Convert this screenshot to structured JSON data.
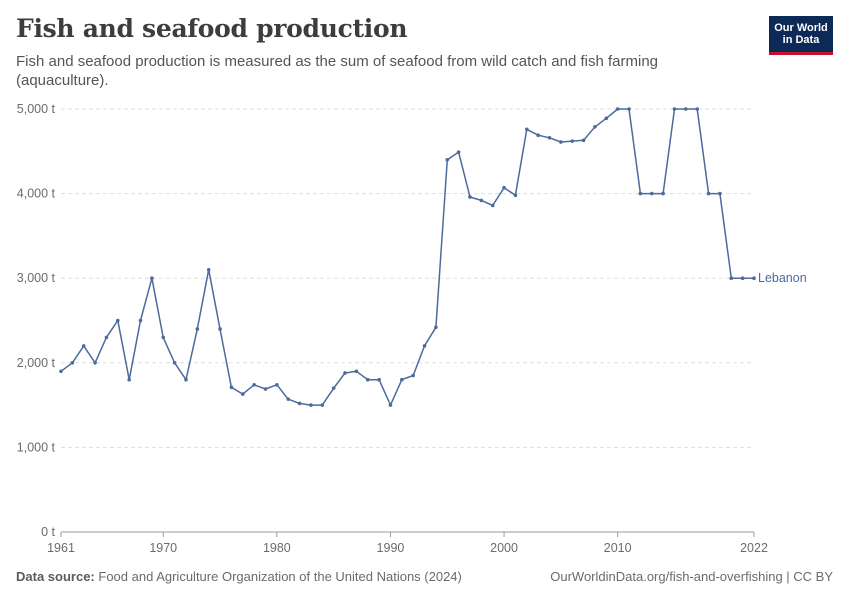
{
  "header": {
    "title": "Fish and seafood production",
    "subtitle": "Fish and seafood production is measured as the sum of seafood from wild catch and fish farming (aquaculture).",
    "logo_line1": "Our World",
    "logo_line2": "in Data"
  },
  "footer": {
    "source_label": "Data source:",
    "source_text": "Food and Agriculture Organization of the United Nations (2024)",
    "link_text": "OurWorldinData.org/fish-and-overfishing | CC BY"
  },
  "colors": {
    "series": "#4c6a9c",
    "grid": "#dddddd",
    "axis": "#999999",
    "logo_bg": "#0d2a57",
    "logo_accent": "#c8102e"
  },
  "chart_data": {
    "type": "line",
    "title": "Fish and seafood production",
    "xlim": [
      1961,
      2022
    ],
    "ylim": [
      0,
      5000
    ],
    "y_ticks": [
      0,
      1000,
      2000,
      3000,
      4000,
      5000
    ],
    "y_tick_labels": [
      "0 t",
      "1,000 t",
      "2,000 t",
      "3,000 t",
      "4,000 t",
      "5,000 t"
    ],
    "x_ticks": [
      1961,
      1970,
      1980,
      1990,
      2000,
      2010,
      2022
    ],
    "x_tick_labels": [
      "1961",
      "1970",
      "1980",
      "1990",
      "2000",
      "2010",
      "2022"
    ],
    "grid": "horizontal dashed",
    "series": [
      {
        "name": "Lebanon",
        "x": [
          1961,
          1962,
          1963,
          1964,
          1965,
          1966,
          1967,
          1968,
          1969,
          1970,
          1971,
          1972,
          1973,
          1974,
          1975,
          1976,
          1977,
          1978,
          1979,
          1980,
          1981,
          1982,
          1983,
          1984,
          1985,
          1986,
          1987,
          1988,
          1989,
          1990,
          1991,
          1992,
          1993,
          1994,
          1995,
          1996,
          1997,
          1998,
          1999,
          2000,
          2001,
          2002,
          2003,
          2004,
          2005,
          2006,
          2007,
          2008,
          2009,
          2010,
          2011,
          2012,
          2013,
          2014,
          2015,
          2016,
          2017,
          2018,
          2019,
          2020,
          2021,
          2022
        ],
        "y": [
          1900,
          2000,
          2200,
          2000,
          2300,
          2500,
          1800,
          2500,
          3000,
          2300,
          2000,
          1800,
          2400,
          3100,
          2400,
          1710,
          1630,
          1740,
          1690,
          1740,
          1570,
          1520,
          1500,
          1500,
          1700,
          1880,
          1900,
          1800,
          1800,
          1500,
          1800,
          1850,
          2200,
          2420,
          4400,
          4490,
          3960,
          3920,
          3860,
          4070,
          3980,
          4760,
          4690,
          4660,
          4610,
          4620,
          4630,
          4790,
          4890,
          5000,
          5000,
          4000,
          4000,
          4000,
          5000,
          5000,
          5000,
          4000,
          4000,
          3000,
          3000,
          3000
        ]
      }
    ]
  }
}
